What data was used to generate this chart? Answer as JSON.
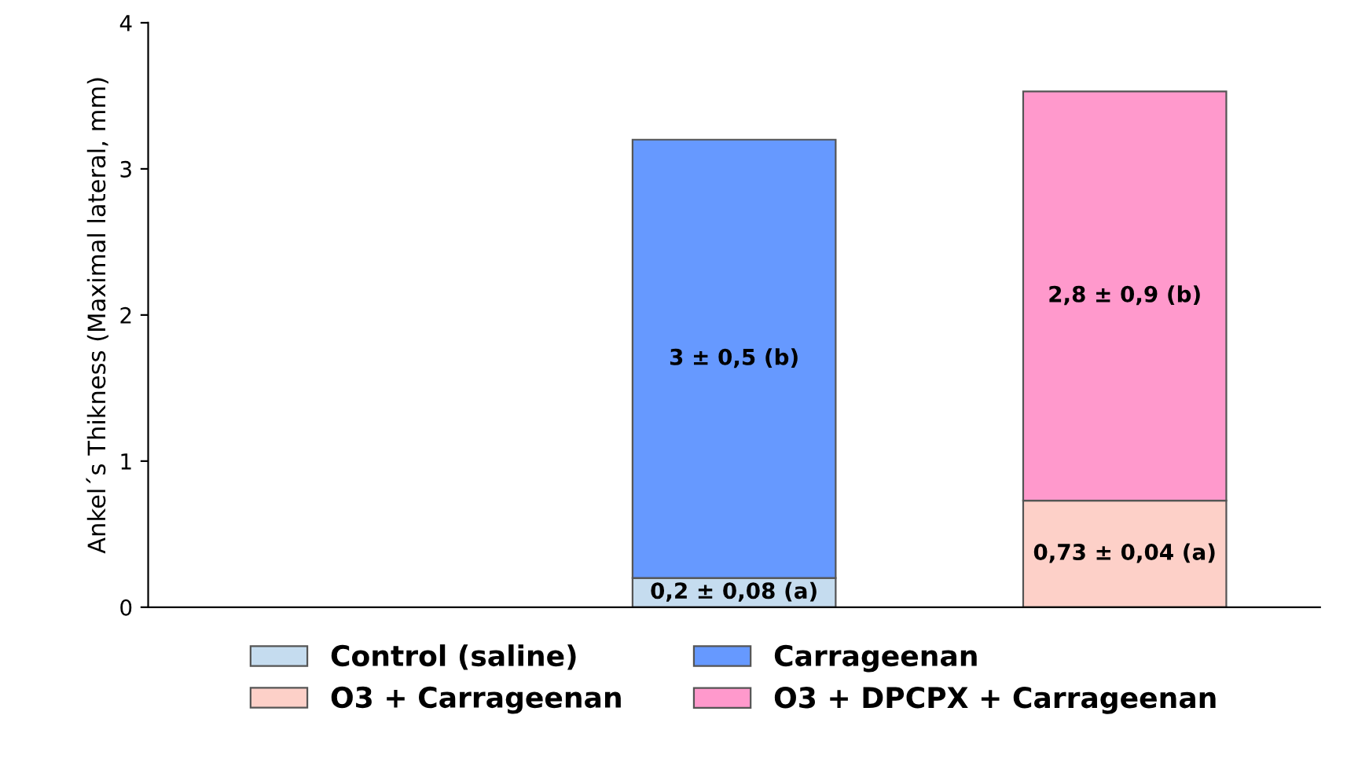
{
  "chart_data": {
    "type": "bar",
    "stacked": true,
    "ylabel": "Ankel´s Thikness (Maximal lateral, mm)",
    "categories": [
      null,
      null,
      null
    ],
    "series": [
      {
        "name": "Control (saline)",
        "color": "#c5dcef",
        "values": [
          null,
          0.2,
          null
        ],
        "value_labels": [
          null,
          "0,2 ± 0,08 (a)",
          null
        ]
      },
      {
        "name": "Carrageenan",
        "color": "#6699ff",
        "values": [
          null,
          3,
          null
        ],
        "value_labels": [
          null,
          "3 ± 0,5 (b)",
          null
        ]
      },
      {
        "name": "O3 + Carrageenan",
        "color": "#fdd0c8",
        "values": [
          null,
          null,
          0.73
        ],
        "value_labels": [
          null,
          null,
          "0,73 ± 0,04 (a)"
        ]
      },
      {
        "name": "O3 + DPCPX + Carrageenan",
        "color": "#ff99cc",
        "values": [
          null,
          null,
          2.8
        ],
        "value_labels": [
          null,
          null,
          "2,8 ± 0,9 (b)"
        ]
      }
    ],
    "ylim": [
      0,
      4
    ],
    "yticks": [
      0,
      1,
      2,
      3,
      4
    ],
    "tick_labels": "y",
    "grid": false,
    "legend": "bottom"
  }
}
